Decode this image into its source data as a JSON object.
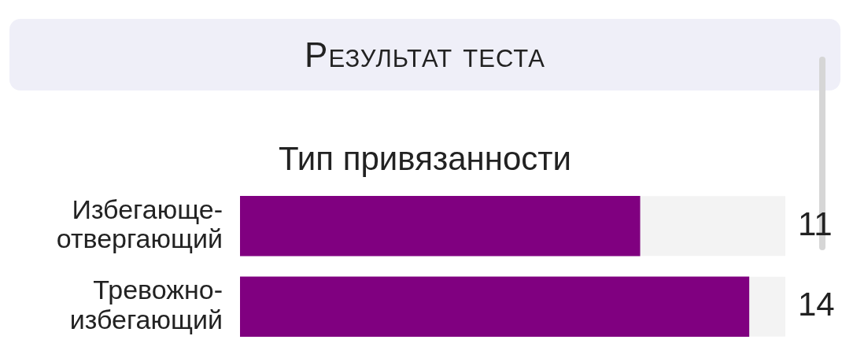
{
  "chart_data": {
    "type": "bar",
    "orientation": "horizontal",
    "title": "Результат теста",
    "subtitle": "Тип привязанности",
    "categories": [
      "Избегающе-отвергающий",
      "Тревожно-избегающий"
    ],
    "values": [
      11,
      14
    ],
    "color": "#800080",
    "xlim": [
      0,
      15
    ],
    "tick_labels": "y",
    "data_labels": true
  }
}
